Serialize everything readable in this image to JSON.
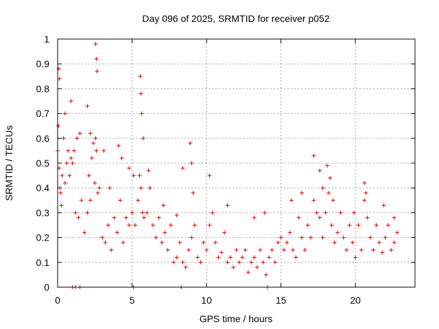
{
  "chart_data": {
    "type": "scatter",
    "title": "Day 096 of 2025, SRMTID for receiver p052",
    "xlabel": "GPS time / hours",
    "ylabel": "SRMTID / TECUs",
    "xlim": [
      0,
      24
    ],
    "ylim": [
      0,
      1
    ],
    "xticks": [
      0,
      5,
      10,
      15,
      20
    ],
    "xtick_labels": [
      "0",
      "5",
      "10",
      "15",
      "20"
    ],
    "yticks": [
      0,
      0.1,
      0.2,
      0.3,
      0.4,
      0.5,
      0.6,
      0.7,
      0.8,
      0.9,
      1
    ],
    "ytick_labels": [
      "0",
      "0.1",
      "0.2",
      "0.3",
      "0.4",
      "0.5",
      "0.6",
      "0.7",
      "0.8",
      "0.9",
      "1"
    ],
    "grid": true,
    "marker": "+",
    "marker_color": "#dd0000",
    "series": [
      {
        "name": "SRMTID",
        "x": [
          0.0,
          0.05,
          0.1,
          0.15,
          0.2,
          0.25,
          0.3,
          0.4,
          0.5,
          0.6,
          0.7,
          0.8,
          0.9,
          1.0,
          1.2,
          1.4,
          1.6,
          1.8,
          2.0,
          2.1,
          2.2,
          2.3,
          2.4,
          2.5,
          2.55,
          2.6,
          2.7,
          2.8,
          3.0,
          3.2,
          3.4,
          3.6,
          3.8,
          4.0,
          4.2,
          4.4,
          4.6,
          4.8,
          5.0,
          5.2,
          5.4,
          5.5,
          5.6,
          5.7,
          5.8,
          6.0,
          6.2,
          6.4,
          6.6,
          6.8,
          7.0,
          7.2,
          7.4,
          7.6,
          7.8,
          8.0,
          8.2,
          8.4,
          8.6,
          8.8,
          9.0,
          9.2,
          9.4,
          9.6,
          9.8,
          10.0,
          10.2,
          10.4,
          10.6,
          10.8,
          11.0,
          11.2,
          11.4,
          11.6,
          11.8,
          12.0,
          12.2,
          12.4,
          12.6,
          12.8,
          13.0,
          13.2,
          13.4,
          13.6,
          13.8,
          14.0,
          14.2,
          14.4,
          14.6,
          14.8,
          15.0,
          15.2,
          15.4,
          15.6,
          15.8,
          16.0,
          16.2,
          16.4,
          16.6,
          16.8,
          17.0,
          17.2,
          17.4,
          17.6,
          17.8,
          18.0,
          18.2,
          18.4,
          18.6,
          18.8,
          19.0,
          19.2,
          19.4,
          19.6,
          19.8,
          20.0,
          20.2,
          20.4,
          20.6,
          20.8,
          21.0,
          21.2,
          21.4,
          21.6,
          21.8,
          22.0,
          22.2,
          22.4,
          22.6,
          22.8,
          0.08,
          0.12,
          0.5,
          0.9,
          1.1,
          1.3,
          1.5,
          2.0,
          2.2,
          2.55,
          2.6,
          2.65,
          3.1,
          3.5,
          4.1,
          4.3,
          4.8,
          5.1,
          5.55,
          5.6,
          5.65,
          5.75,
          6.1,
          7.1,
          8.0,
          8.4,
          8.9,
          9.0,
          9.1,
          10.2,
          11.4,
          13.2,
          13.9,
          15.7,
          16.4,
          17.2,
          17.6,
          17.8,
          18.1,
          18.3,
          18.5,
          19.9,
          20.6,
          20.7,
          21.9,
          22.6,
          1.0,
          1.2,
          1.5,
          5.1,
          8.3,
          14.1
        ],
        "y": [
          0.55,
          0.65,
          0.48,
          0.4,
          0.38,
          0.33,
          0.45,
          0.6,
          0.42,
          0.5,
          0.55,
          0.45,
          0.52,
          0.5,
          0.3,
          0.28,
          0.35,
          0.22,
          0.3,
          0.45,
          0.35,
          0.52,
          0.58,
          0.42,
          0.6,
          0.55,
          0.38,
          0.4,
          0.2,
          0.18,
          0.25,
          0.15,
          0.28,
          0.22,
          0.35,
          0.18,
          0.28,
          0.25,
          0.3,
          0.25,
          0.35,
          0.45,
          0.4,
          0.3,
          0.28,
          0.3,
          0.4,
          0.25,
          0.2,
          0.28,
          0.18,
          0.22,
          0.15,
          0.25,
          0.1,
          0.12,
          0.18,
          0.1,
          0.08,
          0.15,
          0.2,
          0.25,
          0.12,
          0.1,
          0.18,
          0.15,
          0.25,
          0.3,
          0.18,
          0.12,
          0.14,
          0.22,
          0.1,
          0.12,
          0.08,
          0.15,
          0.1,
          0.12,
          0.15,
          0.06,
          0.1,
          0.12,
          0.08,
          0.15,
          0.1,
          0.05,
          0.12,
          0.15,
          0.1,
          0.18,
          0.2,
          0.15,
          0.18,
          0.22,
          0.15,
          0.12,
          0.28,
          0.2,
          0.15,
          0.25,
          0.2,
          0.35,
          0.3,
          0.28,
          0.2,
          0.3,
          0.38,
          0.25,
          0.18,
          0.22,
          0.3,
          0.2,
          0.15,
          0.25,
          0.18,
          0.12,
          0.25,
          0.15,
          0.35,
          0.28,
          0.2,
          0.15,
          0.25,
          0.18,
          0.14,
          0.2,
          0.25,
          0.15,
          0.18,
          0.22,
          0.88,
          0.84,
          0.7,
          0.75,
          0.55,
          0.6,
          0.62,
          0.73,
          0.62,
          0.98,
          0.92,
          0.87,
          0.55,
          0.4,
          0.57,
          0.52,
          0.48,
          0.45,
          0.85,
          0.78,
          0.7,
          0.6,
          0.47,
          0.33,
          0.29,
          0.48,
          0.58,
          0.5,
          0.38,
          0.45,
          0.33,
          0.28,
          0.3,
          0.35,
          0.38,
          0.53,
          0.47,
          0.4,
          0.49,
          0.44,
          0.35,
          0.3,
          0.42,
          0.38,
          0.33,
          0.28,
          0.0,
          0.0,
          0.0,
          0.0,
          0.0,
          0.0
        ]
      }
    ]
  }
}
